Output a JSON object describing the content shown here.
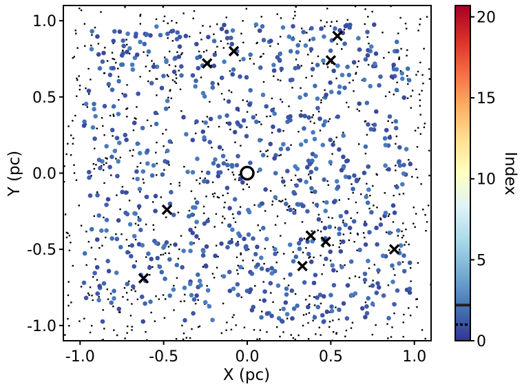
{
  "chart_data": {
    "type": "scatter",
    "xlabel": "X (pc)",
    "ylabel": "Y (pc)",
    "colorbar_label": "Index",
    "xlim": [
      -1.1,
      1.1
    ],
    "ylim": [
      -1.1,
      1.1
    ],
    "x_ticks": [
      {
        "value": -1.0,
        "label": "-1.0"
      },
      {
        "value": -0.5,
        "label": "-0.5"
      },
      {
        "value": 0.0,
        "label": "0.0"
      },
      {
        "value": 0.5,
        "label": "0.5"
      },
      {
        "value": 1.0,
        "label": "1.0"
      }
    ],
    "y_ticks": [
      {
        "value": -1.0,
        "label": "-1.0"
      },
      {
        "value": -0.5,
        "label": "-0.5"
      },
      {
        "value": 0.0,
        "label": "0.0"
      },
      {
        "value": 0.5,
        "label": "0.5"
      },
      {
        "value": 1.0,
        "label": "1.0"
      }
    ],
    "colorbar": {
      "range": [
        0,
        20.7
      ],
      "ticks": [
        {
          "value": 0,
          "label": "0"
        },
        {
          "value": 5,
          "label": "5"
        },
        {
          "value": 10,
          "label": "10"
        },
        {
          "value": 15,
          "label": "15"
        },
        {
          "value": 20,
          "label": "20"
        }
      ],
      "colormap": [
        "#313695",
        "#4575b4",
        "#74add1",
        "#abd9e9",
        "#e0f3f8",
        "#ffffbf",
        "#fee090",
        "#fdae61",
        "#f46d43",
        "#d73027",
        "#a50026"
      ],
      "solid_line_value": 2.2,
      "dashed_line_value": 1.0
    },
    "series": [
      {
        "marker": "open-circle",
        "color": "#000000",
        "points": [
          {
            "x": 0.0,
            "y": 0.0
          }
        ]
      },
      {
        "marker": "x",
        "color": "#000000",
        "points": [
          {
            "x": -0.24,
            "y": 0.72
          },
          {
            "x": -0.08,
            "y": 0.8
          },
          {
            "x": 0.5,
            "y": 0.74
          },
          {
            "x": 0.54,
            "y": 0.9
          },
          {
            "x": -0.48,
            "y": -0.24
          },
          {
            "x": -0.62,
            "y": -0.69
          },
          {
            "x": 0.38,
            "y": -0.41
          },
          {
            "x": 0.47,
            "y": -0.45
          },
          {
            "x": 0.33,
            "y": -0.61
          },
          {
            "x": 0.88,
            "y": -0.5
          }
        ]
      },
      {
        "marker": "filled-circle",
        "color_by": "index",
        "index_range": [
          0,
          2.5
        ],
        "count": 700,
        "distribution": "uniform in [-0.98, 0.98] x [-0.98, 0.98]"
      },
      {
        "marker": "dot",
        "color": "#000000",
        "count": 900,
        "distribution": "uniform in [-1.1, 1.1] x [-1.1, 1.1]"
      }
    ]
  }
}
